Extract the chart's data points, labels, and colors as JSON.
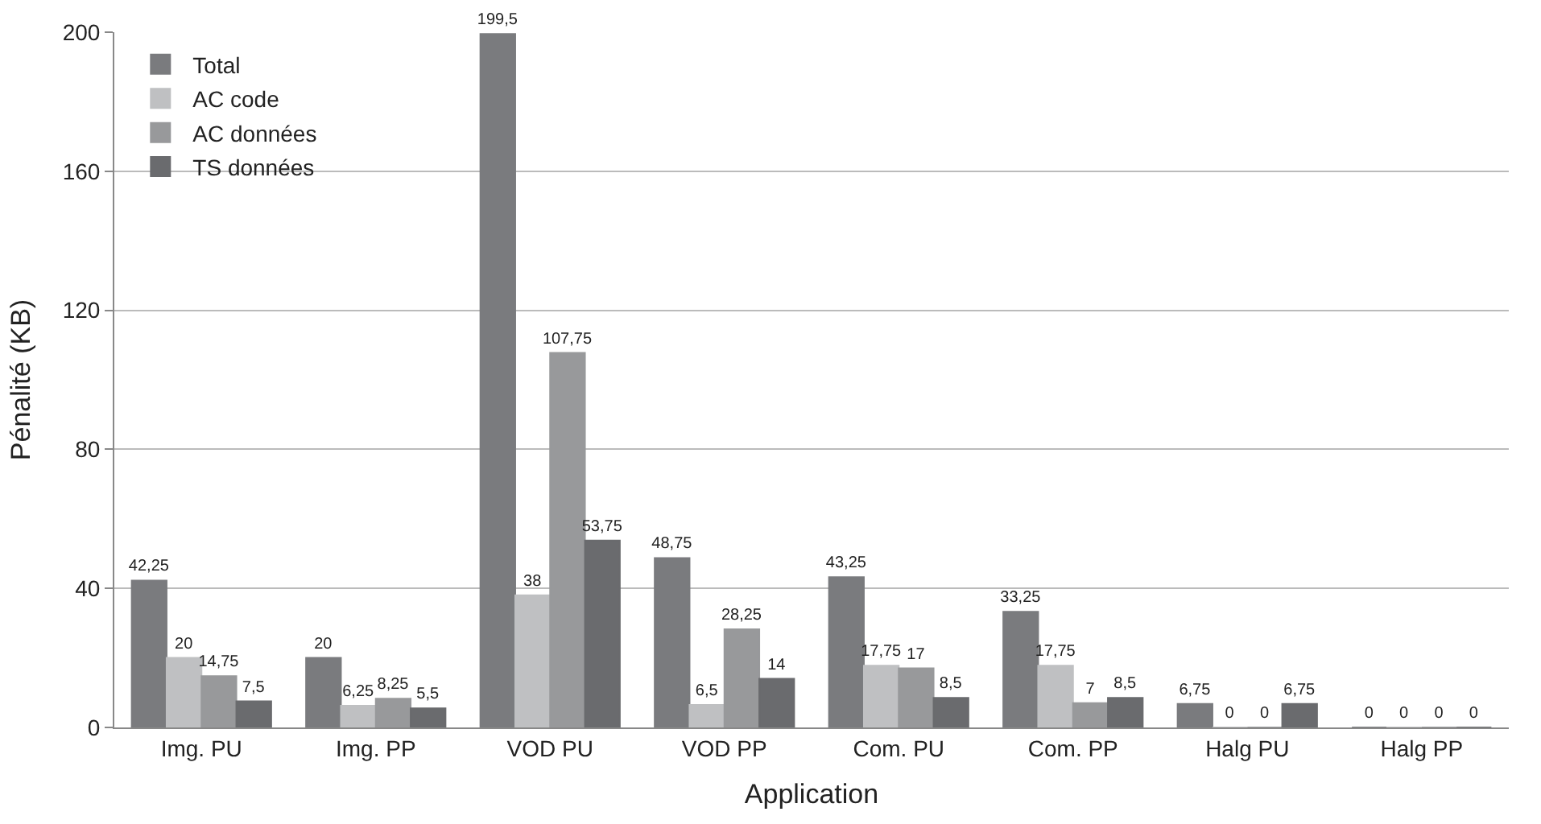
{
  "chart_data": {
    "type": "bar",
    "xlabel": "Application",
    "ylabel": "Pénalité (KB)",
    "categories": [
      "Img. PU",
      "Img. PP",
      "VOD PU",
      "VOD PP",
      "Com. PU",
      "Com. PP",
      "Halg PU",
      "Halg PP"
    ],
    "series": [
      {
        "name": "Total",
        "color": "#7a7b7e",
        "values": [
          42.25,
          20,
          199.5,
          48.75,
          43.25,
          33.25,
          6.75,
          0
        ],
        "value_labels": [
          "42,25",
          "20",
          "199,5",
          "48,75",
          "43,25",
          "33,25",
          "6,75",
          "0"
        ]
      },
      {
        "name": "AC code",
        "color": "#bfc0c2",
        "values": [
          20,
          6.25,
          38,
          6.5,
          17.75,
          17.75,
          0,
          0
        ],
        "value_labels": [
          "20",
          "6,25",
          "38",
          "6,5",
          "17,75",
          "17,75",
          "0",
          "0"
        ]
      },
      {
        "name": "AC données",
        "color": "#98999b",
        "values": [
          14.75,
          8.25,
          107.75,
          28.25,
          17,
          7,
          0,
          0
        ],
        "value_labels": [
          "14,75",
          "8,25",
          "107,75",
          "28,25",
          "17",
          "7",
          "0",
          "0"
        ]
      },
      {
        "name": "TS données",
        "color": "#6a6b6e",
        "values": [
          7.5,
          5.5,
          53.75,
          14,
          8.5,
          8.5,
          6.75,
          0
        ],
        "value_labels": [
          "7,5",
          "5,5",
          "53,75",
          "14",
          "8,5",
          "8,5",
          "6,75",
          "0"
        ]
      }
    ],
    "ylim": [
      0,
      200
    ],
    "yticks": [
      0,
      40,
      80,
      120,
      160,
      200
    ],
    "grid": "y",
    "legend": "top left"
  }
}
